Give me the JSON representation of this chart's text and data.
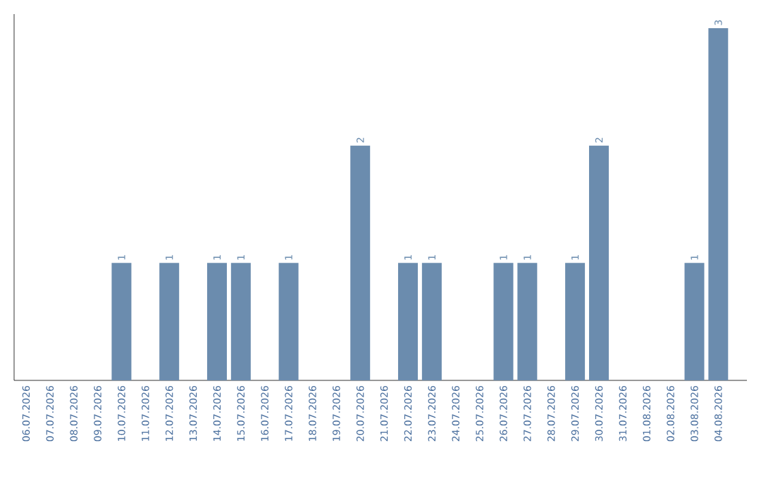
{
  "chart_data": {
    "type": "bar",
    "categories": [
      "06.07.2026",
      "07.07.2026",
      "08.07.2026",
      "09.07.2026",
      "10.07.2026",
      "11.07.2026",
      "12.07.2026",
      "13.07.2026",
      "14.07.2026",
      "15.07.2026",
      "16.07.2026",
      "17.07.2026",
      "18.07.2026",
      "19.07.2026",
      "20.07.2026",
      "21.07.2026",
      "22.07.2026",
      "23.07.2026",
      "24.07.2026",
      "25.07.2026",
      "26.07.2026",
      "27.07.2026",
      "28.07.2026",
      "29.07.2026",
      "30.07.2026",
      "31.07.2026",
      "01.08.2026",
      "02.08.2026",
      "03.08.2026",
      "04.08.2026"
    ],
    "values": [
      0,
      0,
      0,
      0,
      1,
      0,
      1,
      0,
      1,
      1,
      0,
      1,
      0,
      0,
      2,
      0,
      1,
      1,
      0,
      0,
      1,
      1,
      0,
      1,
      2,
      0,
      0,
      0,
      1,
      3
    ],
    "value_labels": [
      null,
      null,
      null,
      null,
      "1",
      null,
      "1",
      null,
      "1",
      "1",
      null,
      "1",
      null,
      null,
      "2",
      null,
      "1",
      "1",
      null,
      null,
      "1",
      "1",
      null,
      "1",
      "2",
      null,
      null,
      null,
      "1",
      "3"
    ],
    "color": "#6b8cae"
  }
}
